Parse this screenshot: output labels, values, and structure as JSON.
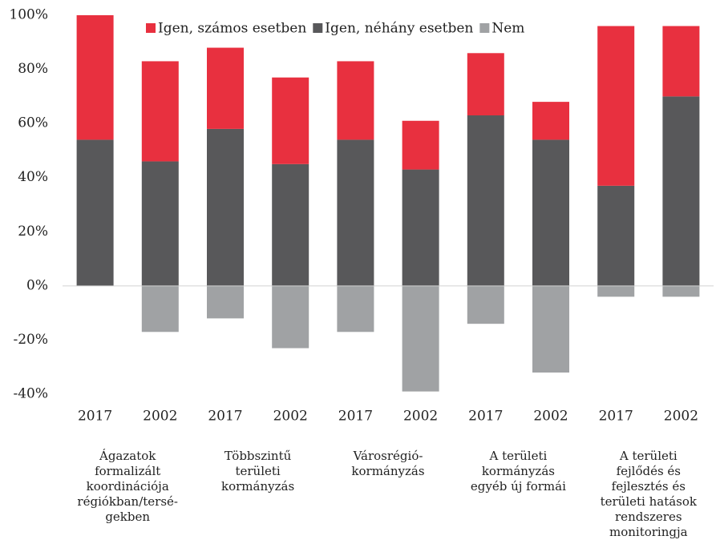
{
  "chart_data": {
    "type": "stacked_bar",
    "categories": [
      "2017",
      "2002",
      "2017",
      "2002",
      "2017",
      "2002",
      "2017",
      "2002",
      "2017",
      "2002"
    ],
    "groups": [
      [
        "Ágazatok",
        "formalizált",
        "koordinációja",
        "régiókban/tersé-",
        "gekben"
      ],
      [
        "Többszintű",
        "területi",
        "kormányzás"
      ],
      [
        "Városrégió-",
        "kormányzás"
      ],
      [
        "A területi",
        "kormányzás",
        "egyéb új formái"
      ],
      [
        "A területi",
        "fejlődés és",
        "fejlesztés és",
        "területi hatások",
        "rendszeres",
        "monitoringja"
      ]
    ],
    "series": [
      {
        "name": "Igen, számos esetben",
        "color": "#e8303f",
        "values": [
          46,
          37,
          30,
          32,
          29,
          18,
          23,
          14,
          59,
          26
        ]
      },
      {
        "name": "Igen, néhány esetben",
        "color": "#58585a",
        "values": [
          54,
          46,
          58,
          45,
          54,
          43,
          63,
          54,
          37,
          70
        ]
      },
      {
        "name": "Nem",
        "color": "#a0a2a4",
        "values": [
          0,
          -17,
          -12,
          -23,
          -17,
          -39,
          -14,
          -32,
          -4,
          -4
        ]
      }
    ],
    "ylim": [
      -40,
      100
    ],
    "yticks": [
      {
        "value": -40,
        "label": "-40%"
      },
      {
        "value": -20,
        "label": "-20%"
      },
      {
        "value": 0,
        "label": "0%"
      },
      {
        "value": 20,
        "label": "20%"
      },
      {
        "value": 40,
        "label": "40%"
      },
      {
        "value": 60,
        "label": "60%"
      },
      {
        "value": 80,
        "label": "80%"
      },
      {
        "value": 100,
        "label": "100%"
      }
    ],
    "legend": "top"
  }
}
